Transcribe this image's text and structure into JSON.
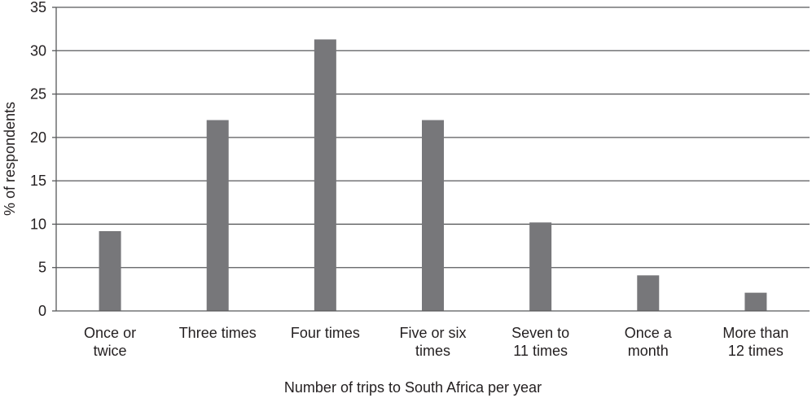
{
  "chart_data": {
    "type": "bar",
    "categories": [
      [
        "Once or",
        "twice"
      ],
      [
        "Three times"
      ],
      [
        "Four times"
      ],
      [
        "Five or six",
        "times"
      ],
      [
        "Seven to",
        "11 times"
      ],
      [
        "Once a",
        "month"
      ],
      [
        "More than",
        "12 times"
      ]
    ],
    "values": [
      9.2,
      22,
      31.3,
      22,
      10.2,
      4.1,
      2.1
    ],
    "xlabel": "Number of trips to South Africa per year",
    "ylabel": "% of respondents",
    "ylim": [
      0,
      35
    ],
    "yticks": [
      0,
      5,
      10,
      15,
      20,
      25,
      30,
      35
    ],
    "grid": true,
    "legend": "none",
    "bar_color": "#77777a",
    "grid_color": "#58595b"
  }
}
